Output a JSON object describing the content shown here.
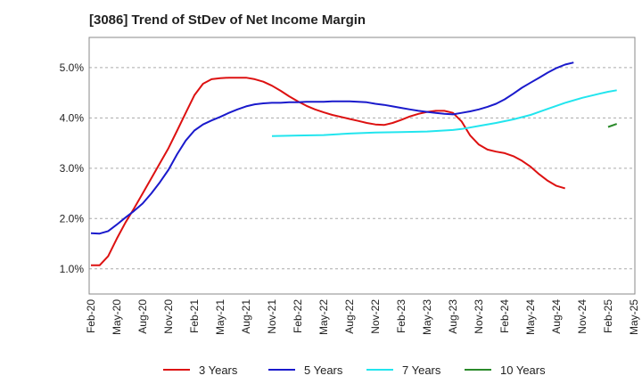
{
  "title": "[3086]  Trend of StDev of Net Income Margin",
  "chart_data": {
    "type": "line",
    "title": "[3086]  Trend of StDev of Net Income Margin",
    "xlabel": "",
    "ylabel": "",
    "ylim": [
      0.5,
      5.6
    ],
    "yticks": [
      1.0,
      2.0,
      3.0,
      4.0,
      5.0
    ],
    "ytick_labels": [
      "1.0%",
      "2.0%",
      "3.0%",
      "4.0%",
      "5.0%"
    ],
    "xtick_labels": [
      "Feb-20",
      "May-20",
      "Aug-20",
      "Nov-20",
      "Feb-21",
      "May-21",
      "Aug-21",
      "Nov-21",
      "Feb-22",
      "May-22",
      "Aug-22",
      "Nov-22",
      "Feb-23",
      "May-23",
      "Aug-23",
      "Nov-23",
      "Feb-24",
      "May-24",
      "Aug-24",
      "Nov-24",
      "Feb-25",
      "May-25"
    ],
    "x_unit": "month index from Feb-20 (0 = Feb-20, 63 = May-25)",
    "grid": "horizontal dashed",
    "legend_position": "bottom",
    "series": [
      {
        "name": "3 Years",
        "color": "#dd1111",
        "points": [
          [
            0,
            1.07
          ],
          [
            1,
            1.07
          ],
          [
            2,
            1.25
          ],
          [
            3,
            1.6
          ],
          [
            4,
            1.92
          ],
          [
            5,
            2.2
          ],
          [
            6,
            2.5
          ],
          [
            7,
            2.8
          ],
          [
            8,
            3.1
          ],
          [
            9,
            3.4
          ],
          [
            10,
            3.75
          ],
          [
            11,
            4.1
          ],
          [
            12,
            4.45
          ],
          [
            13,
            4.68
          ],
          [
            14,
            4.77
          ],
          [
            15,
            4.79
          ],
          [
            16,
            4.8
          ],
          [
            17,
            4.8
          ],
          [
            18,
            4.8
          ],
          [
            19,
            4.77
          ],
          [
            20,
            4.72
          ],
          [
            21,
            4.64
          ],
          [
            22,
            4.54
          ],
          [
            23,
            4.43
          ],
          [
            24,
            4.33
          ],
          [
            25,
            4.24
          ],
          [
            26,
            4.17
          ],
          [
            27,
            4.11
          ],
          [
            28,
            4.06
          ],
          [
            29,
            4.02
          ],
          [
            30,
            3.98
          ],
          [
            31,
            3.94
          ],
          [
            32,
            3.9
          ],
          [
            33,
            3.87
          ],
          [
            34,
            3.86
          ],
          [
            35,
            3.9
          ],
          [
            36,
            3.96
          ],
          [
            37,
            4.03
          ],
          [
            38,
            4.08
          ],
          [
            39,
            4.12
          ],
          [
            40,
            4.14
          ],
          [
            41,
            4.14
          ],
          [
            42,
            4.1
          ],
          [
            43,
            3.93
          ],
          [
            44,
            3.65
          ],
          [
            45,
            3.47
          ],
          [
            46,
            3.37
          ],
          [
            47,
            3.33
          ],
          [
            48,
            3.3
          ],
          [
            49,
            3.24
          ],
          [
            50,
            3.15
          ],
          [
            51,
            3.03
          ],
          [
            52,
            2.88
          ],
          [
            53,
            2.75
          ],
          [
            54,
            2.65
          ],
          [
            55,
            2.6
          ]
        ]
      },
      {
        "name": "5 Years",
        "color": "#1a1acc",
        "points": [
          [
            0,
            1.71
          ],
          [
            1,
            1.7
          ],
          [
            2,
            1.75
          ],
          [
            3,
            1.88
          ],
          [
            4,
            2.02
          ],
          [
            5,
            2.15
          ],
          [
            6,
            2.3
          ],
          [
            7,
            2.5
          ],
          [
            8,
            2.72
          ],
          [
            9,
            2.97
          ],
          [
            10,
            3.28
          ],
          [
            11,
            3.55
          ],
          [
            12,
            3.75
          ],
          [
            13,
            3.87
          ],
          [
            14,
            3.95
          ],
          [
            15,
            4.02
          ],
          [
            16,
            4.1
          ],
          [
            17,
            4.17
          ],
          [
            18,
            4.23
          ],
          [
            19,
            4.27
          ],
          [
            20,
            4.29
          ],
          [
            21,
            4.3
          ],
          [
            22,
            4.3
          ],
          [
            23,
            4.31
          ],
          [
            24,
            4.31
          ],
          [
            25,
            4.32
          ],
          [
            26,
            4.32
          ],
          [
            27,
            4.32
          ],
          [
            28,
            4.33
          ],
          [
            29,
            4.33
          ],
          [
            30,
            4.33
          ],
          [
            31,
            4.32
          ],
          [
            32,
            4.31
          ],
          [
            33,
            4.28
          ],
          [
            34,
            4.26
          ],
          [
            35,
            4.23
          ],
          [
            36,
            4.2
          ],
          [
            37,
            4.17
          ],
          [
            38,
            4.14
          ],
          [
            39,
            4.12
          ],
          [
            40,
            4.1
          ],
          [
            41,
            4.08
          ],
          [
            42,
            4.07
          ],
          [
            43,
            4.1
          ],
          [
            44,
            4.13
          ],
          [
            45,
            4.17
          ],
          [
            46,
            4.22
          ],
          [
            47,
            4.28
          ],
          [
            48,
            4.37
          ],
          [
            49,
            4.48
          ],
          [
            50,
            4.6
          ],
          [
            51,
            4.7
          ],
          [
            52,
            4.8
          ],
          [
            53,
            4.9
          ],
          [
            54,
            4.99
          ],
          [
            55,
            5.06
          ],
          [
            56,
            5.1
          ]
        ]
      },
      {
        "name": "7 Years",
        "color": "#22e5ee",
        "points": [
          [
            21,
            3.64
          ],
          [
            24,
            3.65
          ],
          [
            27,
            3.66
          ],
          [
            30,
            3.69
          ],
          [
            33,
            3.71
          ],
          [
            36,
            3.72
          ],
          [
            39,
            3.73
          ],
          [
            42,
            3.76
          ],
          [
            43,
            3.78
          ],
          [
            45,
            3.84
          ],
          [
            47,
            3.9
          ],
          [
            49,
            3.97
          ],
          [
            51,
            4.06
          ],
          [
            53,
            4.18
          ],
          [
            55,
            4.3
          ],
          [
            57,
            4.4
          ],
          [
            59,
            4.48
          ],
          [
            60,
            4.52
          ],
          [
            61,
            4.55
          ]
        ]
      },
      {
        "name": "10 Years",
        "color": "#2a8a2a",
        "points": [
          [
            60,
            3.82
          ],
          [
            61,
            3.88
          ]
        ]
      }
    ]
  },
  "legend": [
    {
      "label": "3 Years",
      "color": "#dd1111"
    },
    {
      "label": "5 Years",
      "color": "#1a1acc"
    },
    {
      "label": "7 Years",
      "color": "#22e5ee"
    },
    {
      "label": "10 Years",
      "color": "#2a8a2a"
    }
  ]
}
